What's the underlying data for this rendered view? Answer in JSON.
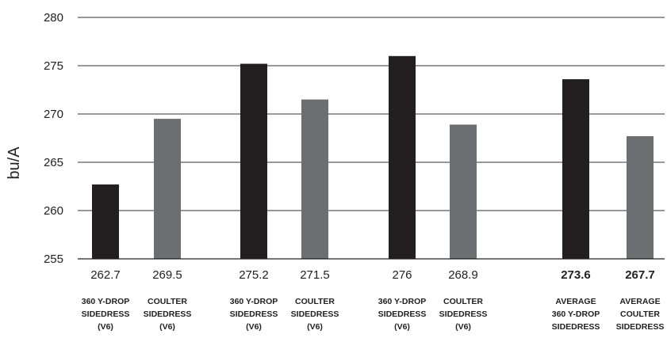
{
  "chart_data": {
    "type": "bar",
    "title": "",
    "xlabel": "",
    "ylabel": "bu/A",
    "ylim": [
      255,
      280
    ],
    "yticks": [
      "255",
      "260",
      "265",
      "270",
      "275",
      "280"
    ],
    "grid": true,
    "bars": [
      {
        "value": 262.7,
        "label": "262.7",
        "category": [
          "360 Y-DROP",
          "SIDEDRESS",
          "(V6)"
        ],
        "type": "360",
        "bold": false
      },
      {
        "value": 269.5,
        "label": "269.5",
        "category": [
          "COULTER",
          "SIDEDRESS",
          "(V6)"
        ],
        "type": "coulter",
        "bold": false
      },
      {
        "value": 275.2,
        "label": "275.2",
        "category": [
          "360 Y-DROP",
          "SIDEDRESS",
          "(V6)"
        ],
        "type": "360",
        "bold": false
      },
      {
        "value": 271.5,
        "label": "271.5",
        "category": [
          "COULTER",
          "SIDEDRESS",
          "(V6)"
        ],
        "type": "coulter",
        "bold": false
      },
      {
        "value": 276,
        "label": "276",
        "category": [
          "360 Y-DROP",
          "SIDEDRESS",
          "(V6)"
        ],
        "type": "360",
        "bold": false
      },
      {
        "value": 268.9,
        "label": "268.9",
        "category": [
          "COULTER",
          "SIDEDRESS",
          "(V6)"
        ],
        "type": "coulter",
        "bold": false
      },
      {
        "value": 273.6,
        "label": "273.6",
        "category": [
          "AVERAGE",
          "360 Y-DROP",
          "SIDEDRESS"
        ],
        "type": "360",
        "bold": true
      },
      {
        "value": 267.7,
        "label": "267.7",
        "category": [
          "AVERAGE",
          "COULTER",
          "SIDEDRESS"
        ],
        "type": "coulter",
        "bold": true
      }
    ],
    "colors": {
      "360": "#231f20",
      "coulter": "#6d6e71"
    }
  }
}
